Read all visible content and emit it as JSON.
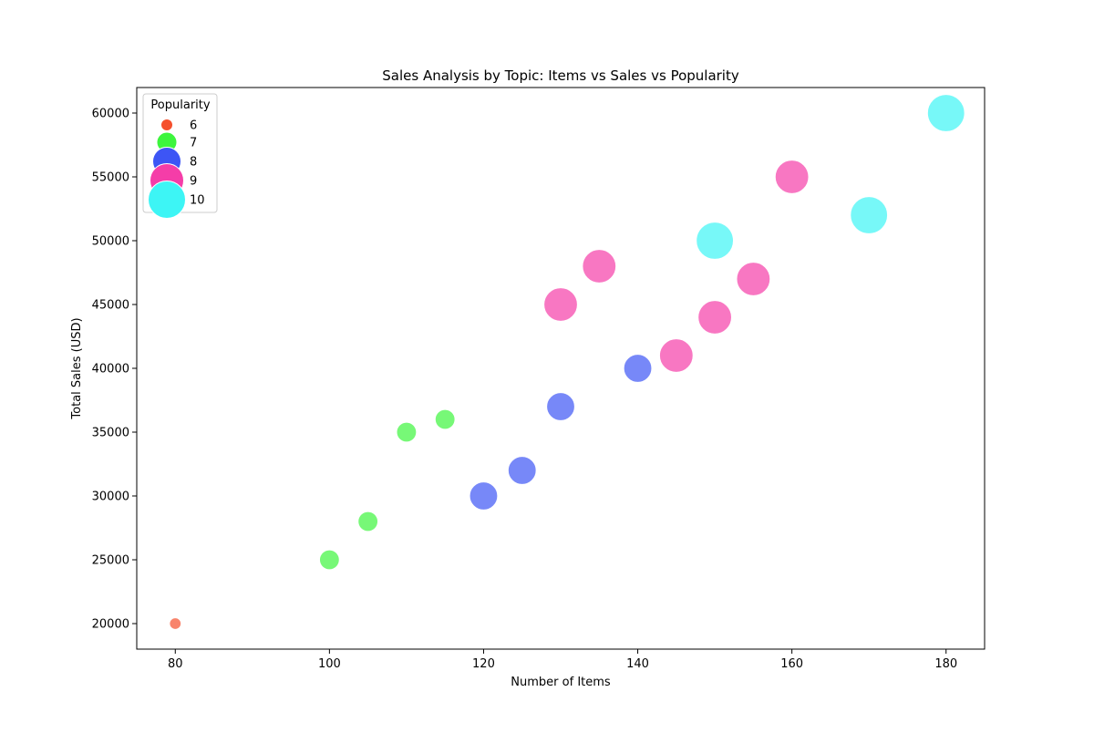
{
  "chart_data": {
    "type": "scatter",
    "title": "Sales Analysis by Topic: Items vs Sales vs Popularity",
    "xlabel": "Number of Items",
    "ylabel": "Total Sales (USD)",
    "xlim": [
      75,
      185
    ],
    "ylim": [
      18000,
      62000
    ],
    "xticks": [
      80,
      100,
      120,
      140,
      160,
      180
    ],
    "yticks": [
      20000,
      25000,
      30000,
      35000,
      40000,
      45000,
      50000,
      55000,
      60000
    ],
    "grid": false,
    "legend": {
      "title": "Popularity",
      "placement": "top-left",
      "entries": [
        {
          "label": "6",
          "popularity": 6,
          "color": "#f5502d"
        },
        {
          "label": "7",
          "popularity": 7,
          "color": "#3df53d"
        },
        {
          "label": "8",
          "popularity": 8,
          "color": "#3d55f5"
        },
        {
          "label": "9",
          "popularity": 9,
          "color": "#f53da8"
        },
        {
          "label": "10",
          "popularity": 10,
          "color": "#3df5f5"
        }
      ]
    },
    "points": [
      {
        "x": 80,
        "y": 20000,
        "popularity": 6
      },
      {
        "x": 100,
        "y": 25000,
        "popularity": 7
      },
      {
        "x": 105,
        "y": 28000,
        "popularity": 7
      },
      {
        "x": 110,
        "y": 35000,
        "popularity": 7
      },
      {
        "x": 115,
        "y": 36000,
        "popularity": 7
      },
      {
        "x": 120,
        "y": 30000,
        "popularity": 8
      },
      {
        "x": 125,
        "y": 32000,
        "popularity": 8
      },
      {
        "x": 130,
        "y": 37000,
        "popularity": 8
      },
      {
        "x": 140,
        "y": 40000,
        "popularity": 8
      },
      {
        "x": 130,
        "y": 45000,
        "popularity": 9
      },
      {
        "x": 135,
        "y": 48000,
        "popularity": 9
      },
      {
        "x": 145,
        "y": 41000,
        "popularity": 9
      },
      {
        "x": 150,
        "y": 44000,
        "popularity": 9
      },
      {
        "x": 155,
        "y": 47000,
        "popularity": 9
      },
      {
        "x": 160,
        "y": 55000,
        "popularity": 9
      },
      {
        "x": 150,
        "y": 50000,
        "popularity": 10
      },
      {
        "x": 170,
        "y": 52000,
        "popularity": 10
      },
      {
        "x": 180,
        "y": 60000,
        "popularity": 10
      }
    ]
  }
}
